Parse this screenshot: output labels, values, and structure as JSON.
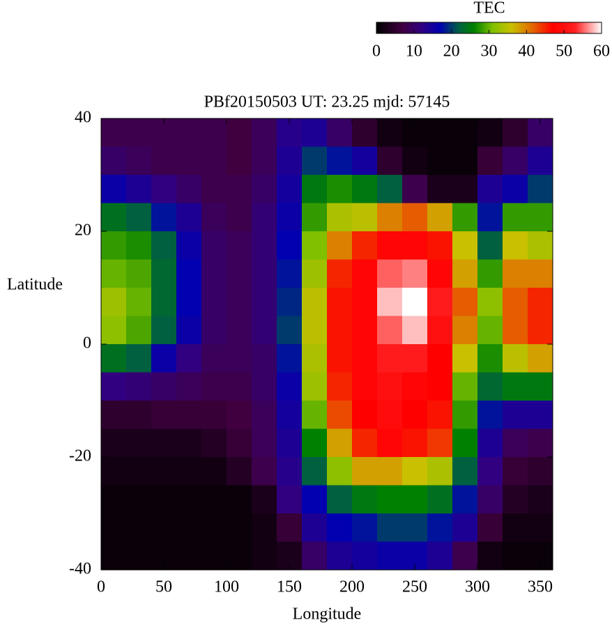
{
  "chart_data": {
    "type": "heatmap",
    "title": "PBf20150503  UT: 23.25  mjd: 57145",
    "xlabel": "Longitude",
    "ylabel": "Latitude",
    "xlim": [
      0,
      360
    ],
    "ylim": [
      -40,
      40
    ],
    "xticks": [
      0,
      50,
      100,
      150,
      200,
      250,
      300,
      350
    ],
    "yticks": [
      -40,
      -20,
      0,
      20,
      40
    ],
    "x": [
      10,
      30,
      50,
      70,
      90,
      110,
      130,
      150,
      170,
      190,
      210,
      230,
      250,
      270,
      290,
      310,
      330,
      350
    ],
    "y": [
      37.5,
      32.5,
      27.5,
      22.5,
      17.5,
      12.5,
      7.5,
      2.5,
      -2.5,
      -7.5,
      -12.5,
      -17.5,
      -22.5,
      -27.5,
      -32.5,
      -37.5
    ],
    "values": [
      [
        8,
        10,
        16,
        24,
        28,
        30,
        33,
        32,
        24,
        12,
        5,
        3,
        2,
        1,
        1,
        1
      ],
      [
        8,
        9,
        14,
        22,
        27,
        29,
        30,
        29,
        22,
        11,
        5,
        3,
        2,
        1,
        1,
        1
      ],
      [
        8,
        8,
        12,
        18,
        22,
        23,
        23,
        22,
        16,
        10,
        6,
        3,
        2,
        1,
        1,
        1
      ],
      [
        8,
        8,
        10,
        14,
        16,
        17,
        17,
        16,
        12,
        9,
        6,
        3,
        2,
        1,
        1,
        1
      ],
      [
        8,
        8,
        8,
        9,
        10,
        10,
        10,
        10,
        9,
        8,
        6,
        4,
        2,
        1,
        1,
        1
      ],
      [
        7,
        7,
        8,
        8,
        9,
        9,
        9,
        9,
        9,
        8,
        7,
        6,
        4,
        1,
        1,
        1
      ],
      [
        9,
        9,
        10,
        11,
        11,
        11,
        11,
        11,
        10,
        10,
        9,
        9,
        8,
        3,
        2,
        2
      ],
      [
        13,
        14,
        15,
        16,
        17,
        18,
        19,
        20,
        18,
        16,
        15,
        14,
        13,
        12,
        6,
        3
      ],
      [
        14,
        20,
        25,
        28,
        31,
        33,
        35,
        35,
        34,
        33,
        30,
        26,
        22,
        17,
        14,
        10
      ],
      [
        10,
        18,
        27,
        34,
        40,
        45,
        46,
        46,
        46,
        45,
        43,
        38,
        32,
        22,
        17,
        14
      ],
      [
        5,
        15,
        25,
        35,
        45,
        48,
        48,
        48,
        48,
        48,
        47,
        45,
        38,
        25,
        18,
        15
      ],
      [
        2,
        5,
        22,
        40,
        48,
        55,
        58,
        55,
        52,
        50,
        49,
        48,
        38,
        26,
        20,
        16
      ],
      [
        1,
        2,
        8,
        42,
        48,
        56,
        60,
        58,
        52,
        48,
        47,
        46,
        36,
        26,
        20,
        16
      ],
      [
        1,
        1,
        3,
        38,
        46,
        48,
        52,
        50,
        47,
        47,
        46,
        44,
        34,
        24,
        18,
        14
      ],
      [
        1,
        1,
        3,
        28,
        36,
        38,
        42,
        40,
        36,
        30,
        28,
        26,
        22,
        18,
        14,
        8
      ],
      [
        2,
        6,
        14,
        18,
        22,
        28,
        32,
        30,
        27,
        23,
        18,
        14,
        12,
        10,
        6,
        2
      ],
      [
        5,
        10,
        16,
        28,
        36,
        40,
        42,
        42,
        35,
        25,
        14,
        9,
        6,
        4,
        2,
        1
      ],
      [
        10,
        14,
        20,
        28,
        34,
        40,
        45,
        45,
        38,
        25,
        14,
        8,
        5,
        3,
        2,
        1
      ]
    ],
    "colorscale": [
      [
        0,
        "#000000"
      ],
      [
        7,
        "#400040"
      ],
      [
        12,
        "#300080"
      ],
      [
        17,
        "#0000b0"
      ],
      [
        22,
        "#006040"
      ],
      [
        26,
        "#008000"
      ],
      [
        31,
        "#80c000"
      ],
      [
        36,
        "#c8c000"
      ],
      [
        41,
        "#e07000"
      ],
      [
        47,
        "#ff0000"
      ],
      [
        53,
        "#ff2020"
      ],
      [
        60,
        "#ffffff"
      ]
    ],
    "colorbar": {
      "label": "TEC",
      "lim": [
        0,
        60
      ],
      "ticks": [
        0,
        10,
        20,
        30,
        40,
        50,
        60
      ]
    }
  }
}
